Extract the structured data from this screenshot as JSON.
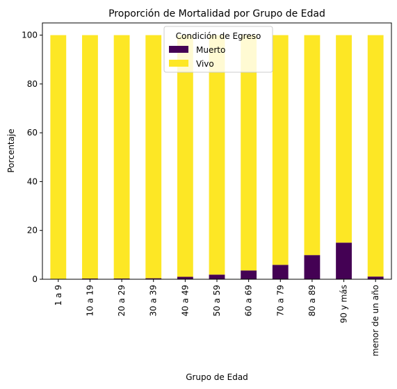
{
  "chart_data": {
    "type": "bar",
    "stacked": true,
    "title": "Proporción de Mortalidad por Grupo de Edad",
    "xlabel": "Grupo de Edad",
    "ylabel": "Porcentaje",
    "ylim": [
      0,
      105
    ],
    "yticks": [
      0,
      20,
      40,
      60,
      80,
      100
    ],
    "grid": false,
    "legend": {
      "title": "Condición de Egreso",
      "placement": "top-center"
    },
    "categories": [
      "1 a 9",
      "10 a 19",
      "20 a 29",
      "30 a 39",
      "40 a 49",
      "50 a 59",
      "60 a 69",
      "70 a 79",
      "80 a 89",
      "90 y más",
      "menor de un año"
    ],
    "series": [
      {
        "name": "Muerto",
        "color": "#440154",
        "values": [
          0.2,
          0.3,
          0.3,
          0.4,
          1.0,
          1.9,
          3.6,
          5.9,
          9.9,
          15.0,
          1.1
        ]
      },
      {
        "name": "Vivo",
        "color": "#fde725",
        "values": [
          99.8,
          99.7,
          99.7,
          99.6,
          99.0,
          98.1,
          96.4,
          94.1,
          90.1,
          85.0,
          98.9
        ]
      }
    ]
  }
}
